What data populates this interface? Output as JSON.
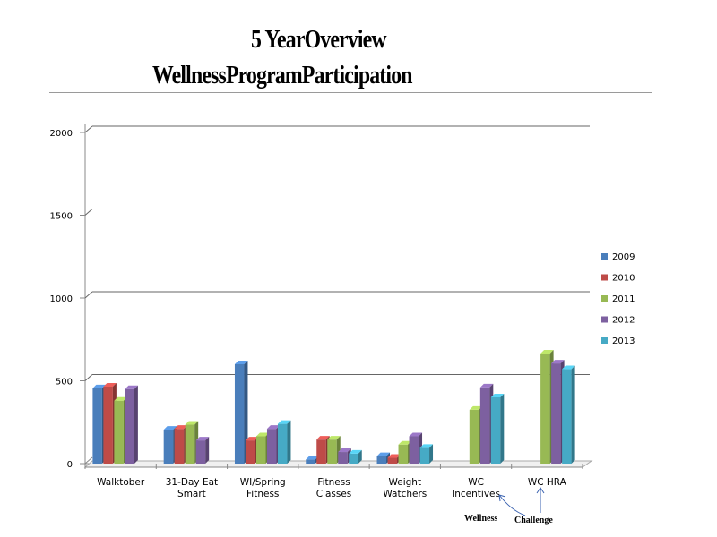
{
  "title_line1": "5  YearOverview",
  "title_line2": "WellnessProgramParticipation",
  "chart_data": {
    "type": "bar",
    "categories": [
      [
        "Walktober"
      ],
      [
        "31-Day Eat",
        "Smart"
      ],
      [
        "WI/Spring",
        "Fitness"
      ],
      [
        "Fitness",
        "Classes"
      ],
      [
        "Weight",
        "Watchers"
      ],
      [
        "WC",
        "Incentives"
      ],
      [
        "WC HRA"
      ]
    ],
    "series": [
      {
        "name": "2009",
        "color": "#4a7ebb",
        "values": [
          455,
          205,
          600,
          25,
          45,
          null,
          null
        ]
      },
      {
        "name": "2010",
        "color": "#be4b48",
        "values": [
          465,
          210,
          140,
          145,
          35,
          null,
          null
        ]
      },
      {
        "name": "2011",
        "color": "#98b954",
        "values": [
          380,
          235,
          165,
          145,
          115,
          325,
          665
        ]
      },
      {
        "name": "2012",
        "color": "#7d60a0",
        "values": [
          450,
          140,
          210,
          70,
          165,
          460,
          605
        ]
      },
      {
        "name": "2013",
        "color": "#46aac5",
        "values": [
          null,
          null,
          240,
          60,
          95,
          400,
          570
        ]
      }
    ],
    "yticks": [
      0,
      500,
      1000,
      1500,
      2000
    ],
    "ylim": [
      0,
      2000
    ],
    "grid": true,
    "legend_position": "right",
    "annotations": [
      {
        "text": "Wellness",
        "points_to": "WC Incentives"
      },
      {
        "text": "Challenge",
        "points_to": "WC HRA"
      }
    ]
  }
}
